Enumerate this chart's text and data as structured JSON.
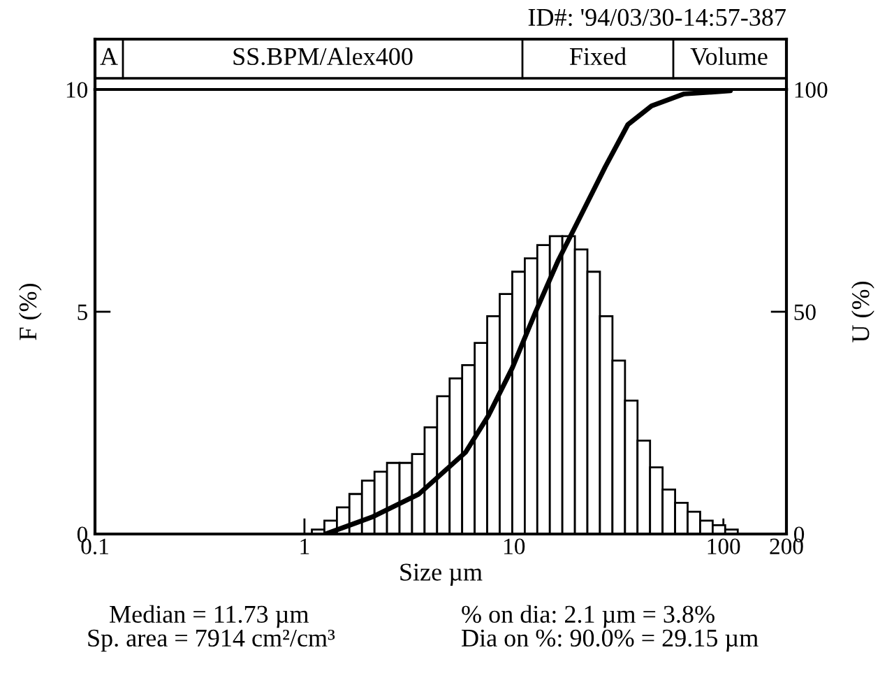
{
  "chart_data": {
    "type": "histogram",
    "xlabel": "Size µm",
    "ylabel": "F (%)",
    "y2label": "U (%)",
    "log": "x",
    "xlim": [
      0.1,
      200
    ],
    "xticks": [
      0.1,
      1,
      10,
      100,
      200
    ],
    "ylim": [
      0,
      10
    ],
    "yticks": [
      0,
      5,
      10
    ],
    "y2lim": [
      0,
      100
    ],
    "y2ticks": [
      0,
      50,
      100
    ],
    "grid": false,
    "annotations": [
      "ID#: '94/03/30-14:57-387",
      "A",
      "SS.BPM/Alex400",
      "Fixed",
      "Volume",
      "Median = 11.73 µm",
      "Sp. area = 7914 cm²/cm³",
      "% on dia: 2.1 µm = 3.8%",
      "Dia on %: 90.0% = 29.15 µm"
    ],
    "series": [
      {
        "type": "histogram",
        "color": "#ffffff",
        "bins": [
          1.085,
          1.245,
          1.429,
          1.639,
          1.882,
          2.16,
          2.478,
          2.844,
          3.264,
          3.746,
          4.298,
          4.933,
          5.661,
          6.496,
          7.455,
          8.556,
          9.82,
          11.27,
          12.93,
          14.84,
          17.03,
          19.55,
          22.43,
          25.74,
          29.54,
          33.91,
          38.91,
          44.66,
          51.25,
          58.82,
          67.5,
          77.47,
          88.9,
          102.0,
          117.1
        ],
        "values": [
          0.1,
          0.3,
          0.6,
          0.9,
          1.2,
          1.4,
          1.6,
          1.6,
          1.8,
          2.4,
          3.1,
          3.5,
          3.8,
          4.3,
          4.9,
          5.4,
          5.9,
          6.2,
          6.5,
          6.7,
          6.7,
          6.4,
          5.9,
          4.9,
          3.9,
          3.0,
          2.1,
          1.5,
          1.0,
          0.7,
          0.5,
          0.3,
          0.2,
          0.1
        ]
      },
      {
        "type": "line",
        "axis": "y2",
        "color": "#000000",
        "line_style": "solid",
        "marker": "none",
        "x": [
          1.26,
          2.1,
          3.52,
          5.88,
          7.59,
          9.83,
          12.7,
          16.3,
          21.1,
          27.3,
          35.0,
          45.4,
          65,
          108
        ],
        "values": [
          0,
          3.8,
          9,
          18.4,
          26.8,
          37.4,
          50,
          61.6,
          72.1,
          82.6,
          92.1,
          96.3,
          99.0,
          99.7
        ]
      }
    ]
  }
}
